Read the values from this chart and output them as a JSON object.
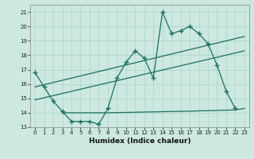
{
  "xlabel": "Humidex (Indice chaleur)",
  "bg_color": "#cce8e0",
  "grid_color": "#aad4ca",
  "line_color": "#1a7060",
  "xlim": [
    -0.5,
    23.5
  ],
  "ylim": [
    13,
    21.5
  ],
  "yticks": [
    13,
    14,
    15,
    16,
    17,
    18,
    19,
    20,
    21
  ],
  "xticks": [
    0,
    1,
    2,
    3,
    4,
    5,
    6,
    7,
    8,
    9,
    10,
    11,
    12,
    13,
    14,
    15,
    16,
    17,
    18,
    19,
    20,
    21,
    22,
    23
  ],
  "main_x": [
    0,
    1,
    2,
    3,
    4,
    5,
    6,
    7,
    8,
    9,
    10,
    11,
    12,
    13,
    14,
    15,
    16,
    17,
    18,
    19,
    20,
    21,
    22
  ],
  "main_y": [
    16.8,
    15.8,
    14.8,
    14.1,
    13.4,
    13.4,
    13.4,
    13.2,
    14.3,
    16.4,
    17.5,
    18.3,
    17.8,
    16.4,
    21.0,
    19.5,
    19.7,
    20.0,
    19.5,
    18.8,
    17.3,
    15.5,
    14.3
  ],
  "flat_x": [
    3,
    8,
    16,
    22,
    23
  ],
  "flat_y": [
    14.0,
    14.0,
    14.1,
    14.2,
    14.3
  ],
  "trend1_x": [
    0,
    23
  ],
  "trend1_y": [
    15.8,
    19.3
  ],
  "trend2_x": [
    0,
    23
  ],
  "trend2_y": [
    14.9,
    18.3
  ]
}
